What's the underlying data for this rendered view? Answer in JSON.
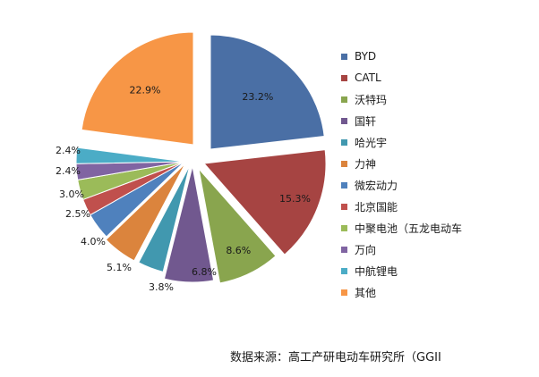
{
  "chart_data": {
    "type": "pie",
    "title": "",
    "source": "数据来源：高工产研电动车研究所（GGII",
    "exploded": true,
    "slices": [
      {
        "name": "BYD",
        "value": 23.2,
        "label": "23.2%",
        "color": "#4a6fa5"
      },
      {
        "name": "CATL",
        "value": 15.3,
        "label": "15.3%",
        "color": "#a64442"
      },
      {
        "name": "沃特玛",
        "value": 8.6,
        "label": "8.6%",
        "color": "#89a54e"
      },
      {
        "name": "国轩",
        "value": 6.8,
        "label": "6.8%",
        "color": "#71588f"
      },
      {
        "name": "哈光宇",
        "value": 3.8,
        "label": "3.8%",
        "color": "#4198af"
      },
      {
        "name": "力神",
        "value": 5.1,
        "label": "5.1%",
        "color": "#db843d"
      },
      {
        "name": "微宏动力",
        "value": 4.0,
        "label": "4.0%",
        "color": "#4f81bd"
      },
      {
        "name": "北京国能",
        "value": 2.5,
        "label": "2.5%",
        "color": "#c0504d"
      },
      {
        "name": "中聚电池（五龙电动车",
        "value": 3.0,
        "label": "3.0%",
        "color": "#9bbb59"
      },
      {
        "name": "万向",
        "value": 2.4,
        "label": "2.4%",
        "color": "#8064a2"
      },
      {
        "name": "中航锂电",
        "value": 2.4,
        "label": "2.4%",
        "color": "#4bacc6"
      },
      {
        "name": "其他",
        "value": 22.9,
        "label": "22.9%",
        "color": "#f79646"
      }
    ]
  }
}
